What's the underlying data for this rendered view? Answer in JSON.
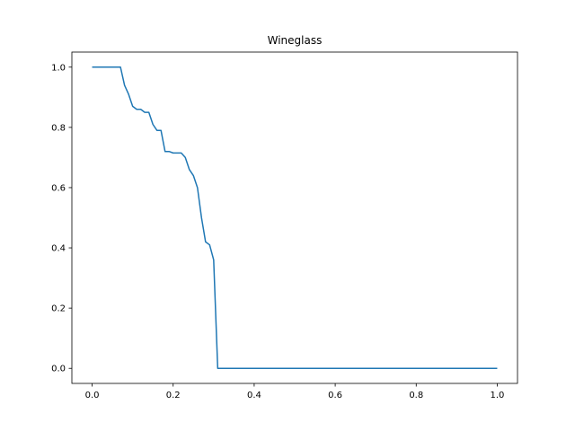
{
  "chart_data": {
    "type": "line",
    "title": "Wineglass",
    "xlabel": "",
    "ylabel": "",
    "xlim": [
      -0.05,
      1.05
    ],
    "ylim": [
      -0.05,
      1.05
    ],
    "grid": false,
    "xticks": [
      0.0,
      0.2,
      0.4,
      0.6,
      0.8,
      1.0
    ],
    "yticks": [
      0.0,
      0.2,
      0.4,
      0.6,
      0.8,
      1.0
    ],
    "xtick_labels": [
      "0.0",
      "0.2",
      "0.4",
      "0.6",
      "0.8",
      "1.0"
    ],
    "ytick_labels": [
      "0.0",
      "0.2",
      "0.4",
      "0.6",
      "0.8",
      "1.0"
    ],
    "line_color": "#1f77b4",
    "series": [
      {
        "x": [
          0.0,
          0.03,
          0.06,
          0.07,
          0.08,
          0.09,
          0.1,
          0.11,
          0.12,
          0.13,
          0.14,
          0.15,
          0.16,
          0.17,
          0.18,
          0.19,
          0.2,
          0.21,
          0.22,
          0.23,
          0.24,
          0.25,
          0.26,
          0.27,
          0.28,
          0.29,
          0.3,
          0.31,
          0.32,
          0.4,
          0.6,
          0.8,
          1.0
        ],
        "y": [
          1.0,
          1.0,
          1.0,
          1.0,
          0.94,
          0.91,
          0.87,
          0.86,
          0.86,
          0.85,
          0.85,
          0.81,
          0.79,
          0.79,
          0.72,
          0.72,
          0.715,
          0.715,
          0.715,
          0.7,
          0.66,
          0.64,
          0.6,
          0.5,
          0.42,
          0.41,
          0.36,
          0.0,
          0.0,
          0.0,
          0.0,
          0.0,
          0.0
        ]
      }
    ]
  }
}
